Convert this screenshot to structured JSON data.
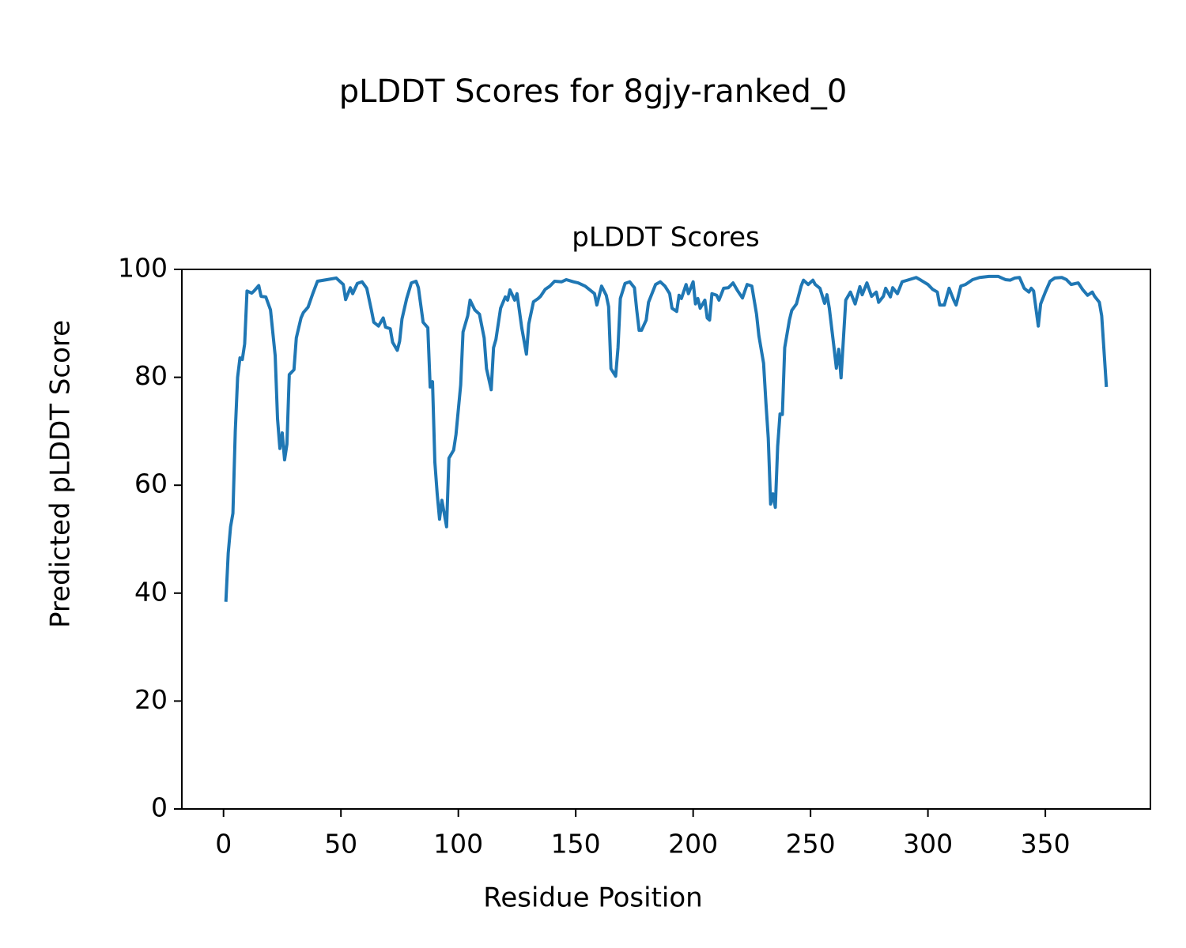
{
  "chart_data": {
    "type": "line",
    "title": "pLDDT Scores for 8gjy-ranked_0",
    "subtitle": "pLDDT Scores",
    "xlabel": "Residue Position",
    "ylabel": "Predicted pLDDT Score",
    "color": "#1f77b4",
    "grid": false,
    "xlim": [
      -17.75,
      394.75
    ],
    "xticks": [
      0,
      50,
      100,
      150,
      200,
      250,
      300,
      350
    ],
    "ylim": [
      0,
      100
    ],
    "yticks": [
      0,
      20,
      40,
      60,
      80,
      100
    ],
    "x": [
      1,
      2,
      3,
      4,
      5,
      6,
      7,
      8,
      9,
      10,
      12,
      13,
      15,
      16,
      18,
      20,
      22,
      23,
      24,
      25,
      26,
      27,
      28,
      30,
      31,
      33,
      34,
      36,
      38,
      40,
      44,
      48,
      51,
      52,
      54,
      55,
      57,
      59,
      61,
      63,
      64,
      66,
      68,
      69,
      71,
      72,
      74,
      75,
      76,
      78,
      80,
      82,
      83,
      85,
      87,
      88,
      89,
      90,
      91,
      92,
      93,
      95,
      96,
      98,
      99,
      101,
      102,
      104,
      105,
      107,
      109,
      111,
      112,
      114,
      115,
      116,
      118,
      120,
      121,
      122,
      124,
      125,
      127,
      129,
      130,
      132,
      134,
      135,
      137,
      139,
      141,
      144,
      146,
      149,
      151,
      154,
      156,
      158,
      159,
      161,
      163,
      164,
      165,
      167,
      168,
      169,
      171,
      173,
      175,
      176,
      177,
      178,
      180,
      181,
      182,
      184,
      186,
      188,
      190,
      191,
      193,
      194,
      195,
      197,
      198,
      200,
      201,
      202,
      203,
      205,
      206,
      207,
      208,
      210,
      211,
      213,
      215,
      217,
      219,
      221,
      223,
      225,
      227,
      228,
      230,
      231,
      232,
      233,
      234,
      235,
      236,
      237,
      238,
      239,
      241,
      242,
      244,
      246,
      247,
      249,
      251,
      252,
      254,
      256,
      257,
      258,
      260,
      261,
      262,
      263,
      265,
      267,
      269,
      271,
      272,
      274,
      276,
      278,
      279,
      281,
      282,
      284,
      285,
      287,
      289,
      292,
      295,
      297,
      300,
      302,
      304,
      305,
      307,
      309,
      311,
      312,
      314,
      316,
      319,
      322,
      326,
      330,
      333,
      335,
      337,
      339,
      341,
      343,
      344,
      345,
      347,
      348,
      350,
      352,
      354,
      357,
      359,
      361,
      364,
      366,
      368,
      370,
      371,
      373,
      374,
      376
    ],
    "values": [
      38.4,
      47.4,
      52.3,
      54.8,
      70,
      80,
      83.6,
      83.3,
      86.2,
      96,
      95.6,
      96,
      97,
      95,
      94.9,
      92.5,
      84,
      72.3,
      66.8,
      69.7,
      64.7,
      67.6,
      80.5,
      81.4,
      87.3,
      91,
      92,
      93,
      95.5,
      97.8,
      98.1,
      98.4,
      97.2,
      94.4,
      96.6,
      95.5,
      97.4,
      97.7,
      96.5,
      92.4,
      90.2,
      89.5,
      91,
      89.3,
      89,
      86.5,
      85,
      86.7,
      90.8,
      94.6,
      97.5,
      97.8,
      96.6,
      90.2,
      89.2,
      78.2,
      79.2,
      64.3,
      58.4,
      53.7,
      57.2,
      52.3,
      65,
      66.5,
      69.4,
      78.6,
      88.4,
      91.4,
      94.3,
      92.5,
      91.7,
      87.3,
      81.6,
      77.7,
      85.5,
      87,
      92.8,
      94.9,
      94.3,
      96.2,
      94.3,
      95.5,
      89.2,
      84.3,
      89.9,
      94,
      94.6,
      95,
      96.3,
      96.9,
      97.8,
      97.7,
      98.1,
      97.7,
      97.5,
      96.9,
      96.2,
      95.5,
      93.4,
      96.9,
      95.2,
      93.1,
      81.6,
      80.2,
      85.5,
      94.6,
      97.4,
      97.7,
      96.6,
      92.4,
      88.7,
      88.7,
      90.6,
      93.9,
      95,
      97.2,
      97.7,
      96.9,
      95.5,
      92.8,
      92.2,
      95.2,
      94.6,
      97.2,
      95.5,
      97.7,
      93.6,
      94.6,
      92.8,
      94.3,
      91,
      90.6,
      95.5,
      95.2,
      94.3,
      96.5,
      96.6,
      97.5,
      96,
      94.7,
      97.2,
      96.9,
      91.7,
      87.7,
      82.6,
      75.3,
      68.7,
      56.5,
      58.4,
      55.9,
      67.2,
      73.2,
      73.1,
      85.5,
      90.6,
      92.4,
      93.6,
      96.9,
      98,
      97.2,
      98,
      97.2,
      96.5,
      93.7,
      95.3,
      92.8,
      85.5,
      81.7,
      85.2,
      79.9,
      94.3,
      95.8,
      93.6,
      96.8,
      95.3,
      97.5,
      95,
      95.8,
      93.9,
      95,
      96.5,
      94.9,
      96.6,
      95.5,
      97.7,
      98.1,
      98.5,
      98,
      97.2,
      96.3,
      95.8,
      93.4,
      93.4,
      96.5,
      94.3,
      93.4,
      96.9,
      97.2,
      98.1,
      98.5,
      98.7,
      98.7,
      98.1,
      98,
      98.4,
      98.5,
      96.5,
      95.8,
      96.5,
      96,
      89.5,
      93.6,
      95.8,
      97.8,
      98.4,
      98.5,
      98.1,
      97.2,
      97.5,
      96.2,
      95.2,
      95.8,
      95,
      93.9,
      91.4,
      78.2
    ]
  }
}
